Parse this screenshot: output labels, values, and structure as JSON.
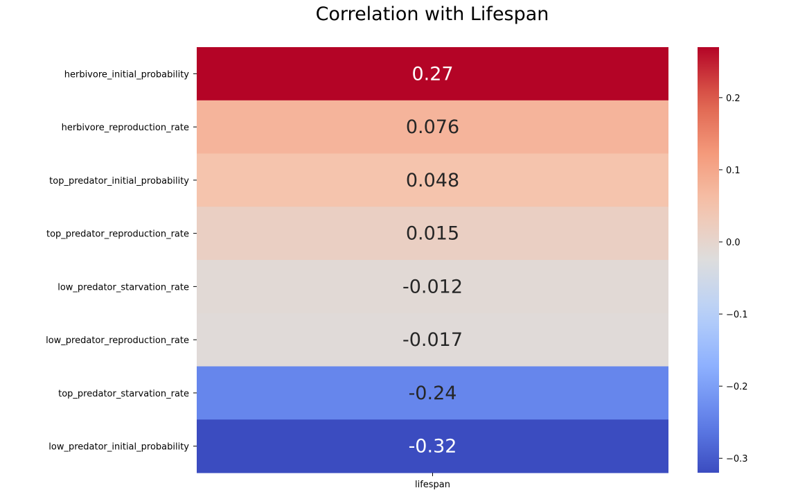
{
  "chart_data": {
    "type": "heatmap",
    "title": "Correlation with Lifespan",
    "columns": [
      "lifespan"
    ],
    "rows": [
      "herbivore_initial_probability",
      "herbivore_reproduction_rate",
      "top_predator_initial_probability",
      "top_predator_reproduction_rate",
      "low_predator_starvation_rate",
      "low_predator_reproduction_rate",
      "top_predator_starvation_rate",
      "low_predator_initial_probability"
    ],
    "values": [
      0.27,
      0.076,
      0.048,
      0.015,
      -0.012,
      -0.017,
      -0.24,
      -0.32
    ],
    "value_labels": [
      "0.27",
      "0.076",
      "0.048",
      "0.015",
      "-0.012",
      "-0.017",
      "-0.24",
      "-0.32"
    ],
    "colormap": "coolwarm",
    "vmin": -0.32,
    "vmax": 0.27,
    "colorbar_ticks": [
      0.2,
      0.1,
      0.0,
      -0.1,
      -0.2,
      -0.3
    ],
    "colorbar_tick_labels": [
      "0.2",
      "0.1",
      "0.0",
      "−0.1",
      "−0.2",
      "−0.3"
    ],
    "colorbar_position": "right"
  }
}
